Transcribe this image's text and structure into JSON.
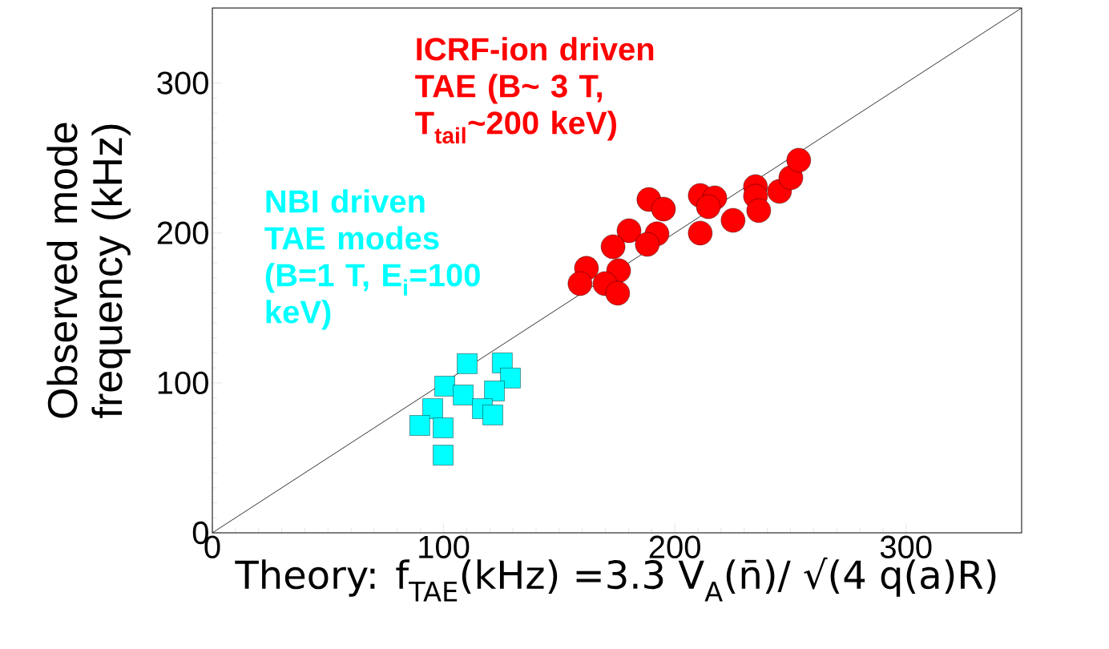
{
  "chart_data": {
    "type": "scatter",
    "xlabel": "Theory: f$_{TAE}$(kHz) =3.3 V$_{A}$(n̄)/ √(4 q(a)R)",
    "ylabel": "Observed mode frequency (kHz)",
    "xlim": [
      0,
      350
    ],
    "ylim": [
      0,
      350
    ],
    "xticks": [
      0,
      100,
      200,
      300
    ],
    "yticks": [
      0,
      100,
      200,
      300
    ],
    "series": [
      {
        "type": "line",
        "color": "#000000",
        "marker": "none",
        "x": [
          0,
          350
        ],
        "values": [
          0,
          350
        ]
      },
      {
        "name": "NBI driven TAE modes (B=1 T, E$_{i}$=100 keV)",
        "color": "#00ffff",
        "marker": "square",
        "x": [
          110.2,
          125.4,
          128.9,
          100.5,
          108.5,
          122.0,
          116.8,
          95.3,
          121.3,
          89.7,
          99.8,
          99.8
        ],
        "values": [
          112.8,
          113.3,
          103.2,
          97.8,
          91.9,
          94.6,
          82.8,
          82.8,
          78.6,
          71.6,
          70.0,
          51.8
        ]
      },
      {
        "name": "ICRF-ion driven TAE (B~ 3 T, T$_{tail}$~200 keV)",
        "color": "#ff0000",
        "marker": "circle",
        "x": [
          188.8,
          195.1,
          211.0,
          217.3,
          214.5,
          211.0,
          225.2,
          234.9,
          234.9,
          236.3,
          245.3,
          250.2,
          253.6,
          180.2,
          192.3,
          188.1,
          173.3,
          161.8,
          159.0,
          175.7,
          169.8,
          175.3
        ],
        "values": [
          222.3,
          215.9,
          225.0,
          223.4,
          217.5,
          199.9,
          208.4,
          230.9,
          224.5,
          214.9,
          227.7,
          236.8,
          248.5,
          201.5,
          199.4,
          192.4,
          190.8,
          176.4,
          166.2,
          174.8,
          166.2,
          159.8
        ]
      }
    ]
  }
}
